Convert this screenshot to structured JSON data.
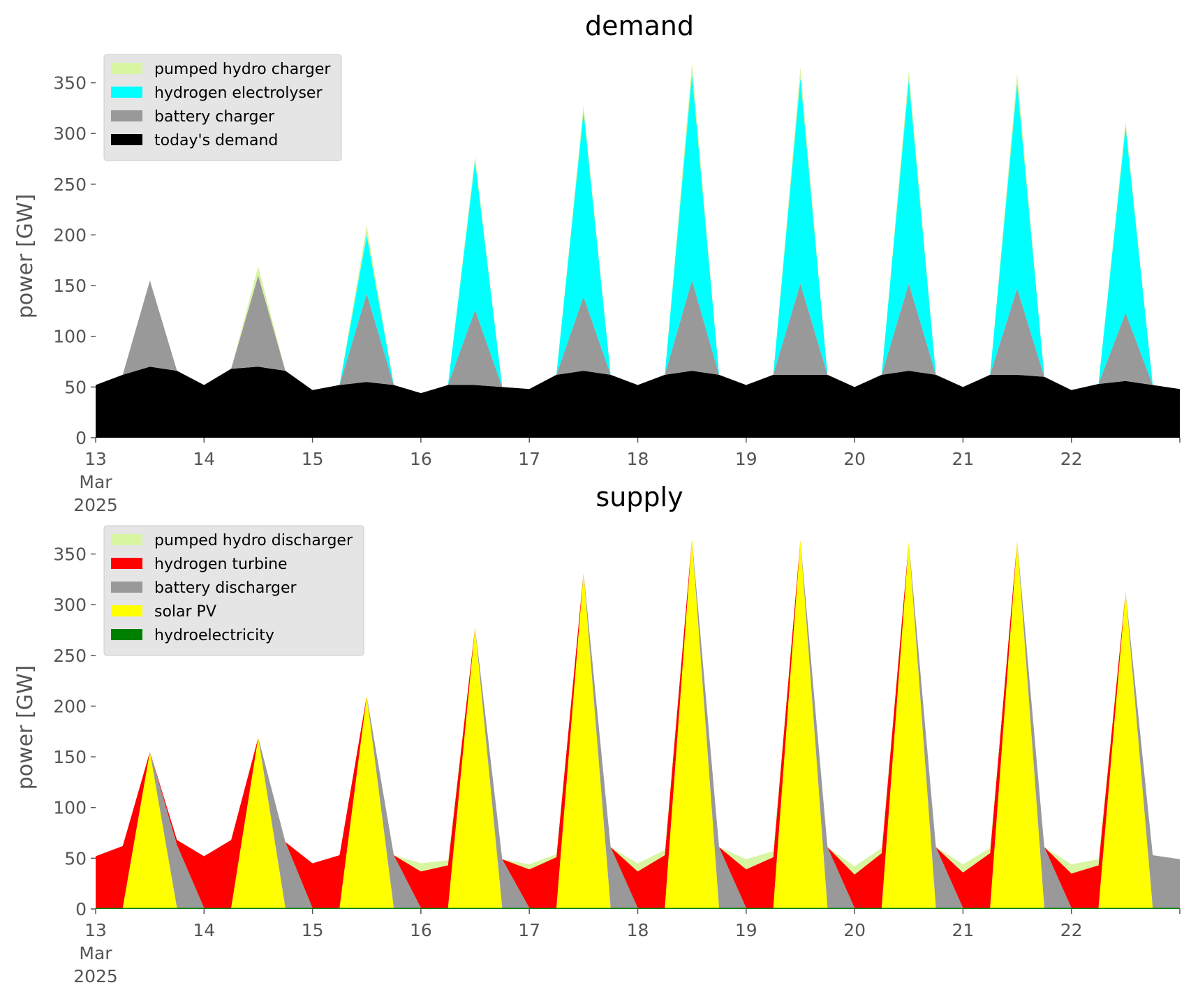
{
  "chart_data": [
    {
      "type": "area",
      "stacked": true,
      "title": "demand",
      "ylabel": "power [GW]",
      "xlabel": "",
      "x": [
        "13-00",
        "13-06",
        "13-12",
        "13-18",
        "14-00",
        "14-06",
        "14-12",
        "14-18",
        "15-00",
        "15-06",
        "15-12",
        "15-18",
        "16-00",
        "16-06",
        "16-12",
        "16-18",
        "17-00",
        "17-06",
        "17-12",
        "17-18",
        "18-00",
        "18-06",
        "18-12",
        "18-18",
        "19-00",
        "19-06",
        "19-12",
        "19-18",
        "20-00",
        "20-06",
        "20-12",
        "20-18",
        "21-00",
        "21-06",
        "21-12",
        "21-18",
        "22-00",
        "22-06",
        "22-12",
        "22-18",
        "22-24"
      ],
      "x_ticks": [
        "13",
        "14",
        "15",
        "16",
        "17",
        "18",
        "19",
        "20",
        "21",
        "22"
      ],
      "x_tick_extra": [
        "Mar",
        "2025"
      ],
      "xlim_days": [
        13,
        23
      ],
      "ylim": [
        0,
        380
      ],
      "y_ticks": [
        0,
        50,
        100,
        150,
        200,
        250,
        300,
        350
      ],
      "grid": false,
      "legend_position": "top-left",
      "series": [
        {
          "name": "today's demand",
          "color": "#000000",
          "values": [
            52,
            62,
            70,
            66,
            52,
            68,
            70,
            66,
            47,
            52,
            55,
            52,
            44,
            52,
            52,
            50,
            48,
            62,
            66,
            62,
            52,
            62,
            66,
            62,
            52,
            62,
            62,
            62,
            50,
            62,
            66,
            62,
            50,
            62,
            62,
            60,
            47,
            53,
            56,
            52,
            48
          ]
        },
        {
          "name": "battery charger",
          "color": "#999999",
          "values": [
            0,
            0,
            85,
            0,
            0,
            0,
            90,
            0,
            0,
            0,
            87,
            0,
            0,
            0,
            74,
            0,
            0,
            0,
            73,
            0,
            0,
            0,
            89,
            0,
            0,
            0,
            90,
            0,
            0,
            0,
            86,
            0,
            0,
            0,
            85,
            0,
            0,
            0,
            67,
            0,
            0
          ]
        },
        {
          "name": "hydrogen electrolyser",
          "color": "#00ffff",
          "values": [
            0,
            0,
            0,
            0,
            0,
            0,
            0,
            0,
            0,
            0,
            58,
            0,
            0,
            0,
            147,
            0,
            0,
            0,
            183,
            0,
            0,
            0,
            204,
            0,
            0,
            0,
            203,
            0,
            0,
            0,
            201,
            0,
            0,
            0,
            203,
            0,
            0,
            0,
            184,
            0,
            0
          ]
        },
        {
          "name": "pumped hydro charger",
          "color": "#d8f5a2",
          "values": [
            0,
            0,
            0,
            0,
            0,
            0,
            9,
            0,
            0,
            0,
            9,
            0,
            0,
            0,
            5,
            0,
            0,
            0,
            6,
            0,
            0,
            0,
            11,
            0,
            0,
            0,
            10,
            0,
            0,
            0,
            9,
            0,
            0,
            0,
            10,
            0,
            0,
            0,
            5,
            0,
            0
          ]
        }
      ]
    },
    {
      "type": "area",
      "stacked": true,
      "title": "supply",
      "ylabel": "power [GW]",
      "xlabel": "",
      "x": [
        "13-00",
        "13-06",
        "13-12",
        "13-18",
        "14-00",
        "14-06",
        "14-12",
        "14-18",
        "15-00",
        "15-06",
        "15-12",
        "15-18",
        "16-00",
        "16-06",
        "16-12",
        "16-18",
        "17-00",
        "17-06",
        "17-12",
        "17-18",
        "18-00",
        "18-06",
        "18-12",
        "18-18",
        "19-00",
        "19-06",
        "19-12",
        "19-18",
        "20-00",
        "20-06",
        "20-12",
        "20-18",
        "21-00",
        "21-06",
        "21-12",
        "21-18",
        "22-00",
        "22-06",
        "22-12",
        "22-18",
        "22-24"
      ],
      "x_ticks": [
        "13",
        "14",
        "15",
        "16",
        "17",
        "18",
        "19",
        "20",
        "21",
        "22"
      ],
      "x_tick_extra": [
        "Mar",
        "2025"
      ],
      "xlim_days": [
        13,
        23
      ],
      "ylim": [
        0,
        380
      ],
      "y_ticks": [
        0,
        50,
        100,
        150,
        200,
        250,
        300,
        350
      ],
      "grid": false,
      "legend_position": "top-left",
      "series": [
        {
          "name": "hydroelectricity",
          "color": "#008000",
          "values": [
            1,
            1,
            1,
            1,
            1,
            1,
            1,
            1,
            1,
            1,
            1,
            1,
            1,
            1,
            1,
            1,
            1,
            1,
            1,
            1,
            1,
            1,
            1,
            1,
            1,
            1,
            1,
            1,
            1,
            1,
            1,
            1,
            1,
            1,
            1,
            1,
            1,
            1,
            1,
            1,
            1
          ]
        },
        {
          "name": "solar PV",
          "color": "#ffff00",
          "values": [
            0,
            0,
            154,
            0,
            0,
            0,
            168,
            0,
            0,
            0,
            209,
            0,
            0,
            0,
            277,
            0,
            0,
            0,
            331,
            0,
            0,
            0,
            364,
            0,
            0,
            0,
            363,
            0,
            0,
            0,
            361,
            0,
            0,
            0,
            362,
            0,
            0,
            0,
            312,
            0,
            0
          ]
        },
        {
          "name": "battery discharger",
          "color": "#999999",
          "values": [
            0,
            0,
            0,
            62,
            0,
            0,
            0,
            65,
            0,
            0,
            0,
            52,
            0,
            0,
            0,
            48,
            0,
            0,
            0,
            60,
            0,
            0,
            0,
            60,
            0,
            0,
            0,
            60,
            0,
            0,
            0,
            60,
            0,
            0,
            0,
            60,
            0,
            0,
            0,
            52,
            48
          ]
        },
        {
          "name": "hydrogen turbine",
          "color": "#ff0000",
          "values": [
            51,
            61,
            0,
            5,
            51,
            67,
            0,
            0,
            44,
            52,
            0,
            0,
            36,
            42,
            0,
            0,
            38,
            50,
            0,
            0,
            36,
            52,
            0,
            0,
            38,
            50,
            0,
            0,
            33,
            54,
            0,
            0,
            35,
            54,
            0,
            0,
            34,
            42,
            0,
            0,
            0
          ]
        },
        {
          "name": "pumped hydro discharger",
          "color": "#d8f5a2",
          "values": [
            0,
            0,
            0,
            0,
            0,
            0,
            0,
            0,
            0,
            0,
            0,
            0,
            8,
            5,
            0,
            0,
            5,
            3,
            0,
            0,
            8,
            5,
            0,
            0,
            10,
            6,
            0,
            0,
            8,
            5,
            0,
            0,
            8,
            5,
            0,
            0,
            9,
            6,
            0,
            0,
            0
          ]
        }
      ]
    }
  ]
}
